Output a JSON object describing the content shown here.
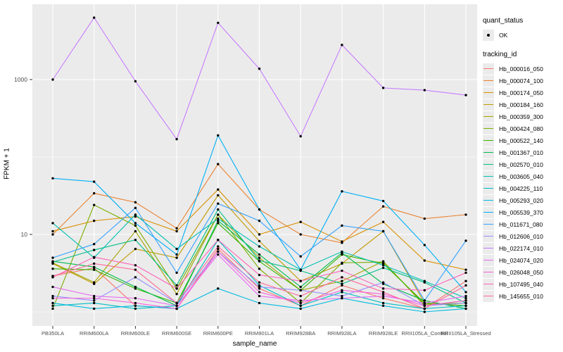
{
  "chart_data": {
    "type": "line",
    "title": "",
    "xlabel": "sample_name",
    "ylabel": "FPKM + 1",
    "y_scale": "log10",
    "ylim": [
      0.9,
      9500
    ],
    "y_major_ticks": [
      10,
      1000
    ],
    "y_major_tick_labels": [
      "10",
      "1000"
    ],
    "y_minor_gridlines": [
      1,
      100
    ],
    "grid": "on",
    "legend_position": "right",
    "panel_background": "#ebebeb",
    "gridline_color": "#ffffff",
    "point_color": "#000000",
    "tick_label_color": "#4d4d4d",
    "categories": [
      "PB350LA",
      "RRIM600LA",
      "RRIM600LE",
      "RRIM600SE",
      "RRIM600PE",
      "RRIM901LA",
      "RRIM928BA",
      "RRIM928LA",
      "RRIM928LE",
      "RRII105LA_Control",
      "RRII105LA_Stressed"
    ],
    "legend": {
      "quant_status_title": "quant_status",
      "quant_status_items": [
        {
          "label": "OK",
          "marker": "black-point"
        }
      ],
      "tracking_id_title": "tracking_id"
    },
    "series": [
      {
        "name": "Hb_000016_050",
        "color": "#F8766D",
        "values": [
          2.9,
          3.7,
          1.2,
          1.1,
          6.5,
          2.0,
          1.2,
          2.2,
          1.5,
          1.1,
          2.5
        ]
      },
      {
        "name": "Hb_000074_100",
        "color": "#EA8331",
        "values": [
          10,
          34,
          26,
          12,
          81,
          21,
          10,
          7.8,
          23,
          16,
          18
        ]
      },
      {
        "name": "Hb_000174_050",
        "color": "#D89000",
        "values": [
          11,
          15,
          17,
          11,
          38,
          10,
          14.5,
          8.1,
          14.5,
          4.6,
          3.5
        ]
      },
      {
        "name": "Hb_000184_160",
        "color": "#C09B00",
        "values": [
          4.2,
          2.3,
          6.5,
          5.0,
          32,
          8.2,
          2.5,
          4.2,
          11,
          1.3,
          1.2
        ]
      },
      {
        "name": "Hb_000359_300",
        "color": "#A3A500",
        "values": [
          4.3,
          2.4,
          11,
          1.7,
          18,
          5.0,
          1.9,
          2.5,
          4.5,
          1.2,
          1.4
        ]
      },
      {
        "name": "Hb_000424_080",
        "color": "#7CAE00",
        "values": [
          1.1,
          24,
          13,
          2.0,
          18,
          3.6,
          1.3,
          4.3,
          4.4,
          1.25,
          1.3
        ]
      },
      {
        "name": "Hb_000522_140",
        "color": "#39B600",
        "values": [
          3.6,
          3.5,
          2.0,
          1.3,
          14,
          4.5,
          1.9,
          5.5,
          4.2,
          1.3,
          1.2
        ]
      },
      {
        "name": "Hb_001367_010",
        "color": "#00BB4E",
        "values": [
          4.5,
          3.8,
          2.1,
          1.2,
          15,
          5.5,
          2.1,
          5.8,
          2.3,
          1.4,
          1.1
        ]
      },
      {
        "name": "Hb_002570_010",
        "color": "#00C087",
        "values": [
          4.4,
          6.3,
          8.5,
          2.2,
          21,
          4.6,
          3.4,
          2.3,
          3.7,
          2.4,
          1.3
        ]
      },
      {
        "name": "Hb_003605_040",
        "color": "#00C0B2",
        "values": [
          14,
          5.0,
          18,
          6.5,
          16,
          7.0,
          3.5,
          6.0,
          4.0,
          2.5,
          1.5
        ]
      },
      {
        "name": "Hb_004225_110",
        "color": "#00BFC4",
        "values": [
          1.2,
          1.3,
          1.1,
          1.2,
          8.5,
          2.2,
          1.2,
          1.8,
          1.3,
          1.1,
          1.2
        ]
      },
      {
        "name": "Hb_005293_020",
        "color": "#00BAE0",
        "values": [
          1.3,
          1.1,
          1.2,
          1.1,
          2.0,
          1.3,
          1.1,
          1.5,
          1.2,
          1.0,
          1.1
        ]
      },
      {
        "name": "Hb_005539_370",
        "color": "#00B0F6",
        "values": [
          53,
          48,
          14,
          5.5,
          190,
          21,
          3.5,
          36,
          27,
          7.3,
          1.8
        ]
      },
      {
        "name": "Hb_011671_080",
        "color": "#35A2FF",
        "values": [
          5.0,
          7.5,
          22,
          3.2,
          25,
          15,
          5.2,
          13,
          11,
          1.4,
          8.3
        ]
      },
      {
        "name": "Hb_012606_010",
        "color": "#9590FF",
        "values": [
          1.6,
          1.4,
          2.8,
          1.3,
          6.0,
          2.1,
          1.9,
          1.6,
          2.4,
          1.2,
          1.3
        ]
      },
      {
        "name": "Hb_022174_010",
        "color": "#C77CFF",
        "values": [
          1000,
          6300,
          950,
          170,
          5400,
          1380,
          185,
          2800,
          780,
          730,
          630
        ]
      },
      {
        "name": "Hb_024074_020",
        "color": "#E76BF3",
        "values": [
          2.1,
          1.6,
          1.5,
          1.2,
          5.5,
          1.6,
          1.4,
          1.5,
          1.6,
          1.3,
          1.6
        ]
      },
      {
        "name": "Hb_026048_050",
        "color": "#FA62DB",
        "values": [
          1.5,
          1.5,
          1.3,
          1.1,
          6.0,
          1.8,
          1.3,
          1.9,
          1.7,
          1.2,
          1.4
        ]
      },
      {
        "name": "Hb_107495_040",
        "color": "#FF62BC",
        "values": [
          2.8,
          5.1,
          4.0,
          2.0,
          8.5,
          3.0,
          2.5,
          3.4,
          2.0,
          1.9,
          3.2
        ]
      },
      {
        "name": "Hb_145655_010",
        "color": "#FF6A98",
        "values": [
          2.9,
          4.2,
          3.5,
          1.3,
          7.0,
          2.4,
          1.6,
          2.8,
          1.8,
          1.1,
          2.2
        ]
      }
    ]
  }
}
